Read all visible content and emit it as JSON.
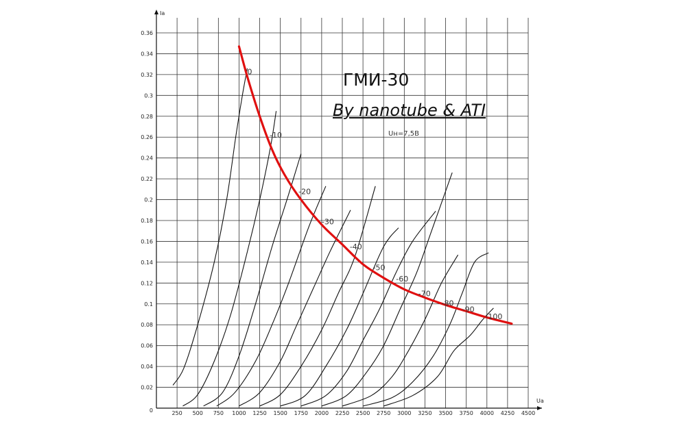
{
  "title": "ГМИ-30",
  "subtitle": "By nanotube & ATI",
  "note": "Uн=7,5В",
  "chart_data": {
    "type": "line",
    "xlabel": "Ua",
    "ylabel": "Ia",
    "xlim": [
      0,
      4500
    ],
    "ylim": [
      0,
      0.36
    ],
    "grid": true,
    "x_ticks": [
      "250",
      "500",
      "750",
      "1000",
      "1250",
      "1500",
      "1750",
      "2000",
      "2250",
      "2500",
      "2750",
      "3000",
      "3250",
      "3500",
      "3750",
      "4000",
      "4250",
      "4500"
    ],
    "y_ticks": [
      "0",
      "0.02",
      "0.04",
      "0.06",
      "0.08",
      "0.1",
      "0.12",
      "0.14",
      "0.16",
      "0.18",
      "0.2",
      "0.22",
      "0.24",
      "0.26",
      "0.28",
      "0.3",
      "0.32",
      "0.34",
      "0.36"
    ],
    "series": [
      {
        "name": "0",
        "x": [
          200,
          330,
          500,
          700,
          850,
          960,
          1040,
          1100
        ],
        "y": [
          0.022,
          0.038,
          0.08,
          0.14,
          0.2,
          0.26,
          0.3,
          0.326
        ]
      },
      {
        "name": "-10",
        "x": [
          320,
          500,
          700,
          900,
          1100,
          1250,
          1380,
          1450
        ],
        "y": [
          0.002,
          0.013,
          0.045,
          0.09,
          0.15,
          0.2,
          0.25,
          0.285
        ]
      },
      {
        "name": "-20",
        "x": [
          570,
          800,
          1000,
          1200,
          1400,
          1600,
          1750
        ],
        "y": [
          0.002,
          0.015,
          0.05,
          0.1,
          0.155,
          0.205,
          0.244
        ]
      },
      {
        "name": "-30",
        "x": [
          730,
          950,
          1200,
          1400,
          1600,
          1850,
          2050
        ],
        "y": [
          0.002,
          0.015,
          0.045,
          0.08,
          0.12,
          0.175,
          0.213
        ]
      },
      {
        "name": "-40",
        "x": [
          1000,
          1250,
          1500,
          1700,
          1900,
          2100,
          2350
        ],
        "y": [
          0.002,
          0.015,
          0.045,
          0.08,
          0.115,
          0.15,
          0.19
        ]
      },
      {
        "name": "-50",
        "x": [
          1250,
          1500,
          1750,
          2000,
          2200,
          2400,
          2650
        ],
        "y": [
          0.002,
          0.013,
          0.04,
          0.075,
          0.11,
          0.145,
          0.213
        ]
      },
      {
        "name": "-60",
        "x": [
          1500,
          1800,
          2050,
          2300,
          2500,
          2750,
          2930
        ],
        "y": [
          0.002,
          0.012,
          0.04,
          0.075,
          0.11,
          0.155,
          0.173
        ]
      },
      {
        "name": "-70",
        "x": [
          1750,
          2050,
          2300,
          2500,
          2700,
          2900,
          3100,
          3380
        ],
        "y": [
          0.002,
          0.012,
          0.035,
          0.065,
          0.095,
          0.13,
          0.16,
          0.189
        ]
      },
      {
        "name": "-80",
        "x": [
          2000,
          2300,
          2550,
          2750,
          2950,
          3150,
          3330,
          3580
        ],
        "y": [
          0.002,
          0.012,
          0.035,
          0.06,
          0.095,
          0.13,
          0.17,
          0.226
        ]
      },
      {
        "name": "-90",
        "x": [
          2250,
          2600,
          2850,
          3050,
          3250,
          3450,
          3650
        ],
        "y": [
          0.002,
          0.012,
          0.03,
          0.055,
          0.085,
          0.12,
          0.147
        ]
      },
      {
        "name": "-100",
        "x": [
          2500,
          2850,
          3100,
          3350,
          3550,
          3700,
          3850,
          4020
        ],
        "y": [
          0.002,
          0.01,
          0.025,
          0.05,
          0.08,
          0.11,
          0.14,
          0.149
        ]
      },
      {
        "name": "",
        "x": [
          2750,
          3100,
          3400,
          3600,
          3800,
          3950,
          4080
        ],
        "y": [
          0.002,
          0.012,
          0.03,
          0.055,
          0.07,
          0.085,
          0.096
        ]
      }
    ],
    "envelope": {
      "name": "",
      "color": "#e01010",
      "x": [
        1000,
        1100,
        1250,
        1400,
        1550,
        1750,
        2000,
        2250,
        2500,
        2750,
        3000,
        3250,
        3500,
        3750,
        4000,
        4300
      ],
      "y": [
        0.347,
        0.318,
        0.28,
        0.248,
        0.224,
        0.2,
        0.176,
        0.157,
        0.138,
        0.125,
        0.114,
        0.106,
        0.099,
        0.093,
        0.087,
        0.081
      ]
    },
    "curve_labels": [
      {
        "text": "0",
        "x": 1100,
        "y": 0.323
      },
      {
        "text": "-10",
        "x": 1370,
        "y": 0.262
      },
      {
        "text": "-20",
        "x": 1720,
        "y": 0.208
      },
      {
        "text": "-30",
        "x": 2000,
        "y": 0.179
      },
      {
        "text": "-40",
        "x": 2340,
        "y": 0.155
      },
      {
        "text": "-50",
        "x": 2620,
        "y": 0.135
      },
      {
        "text": "-60",
        "x": 2900,
        "y": 0.124
      },
      {
        "text": "-70",
        "x": 3170,
        "y": 0.11
      },
      {
        "text": "-80",
        "x": 3450,
        "y": 0.101
      },
      {
        "text": "-90",
        "x": 3700,
        "y": 0.095
      },
      {
        "text": "-100",
        "x": 3980,
        "y": 0.088
      }
    ]
  }
}
